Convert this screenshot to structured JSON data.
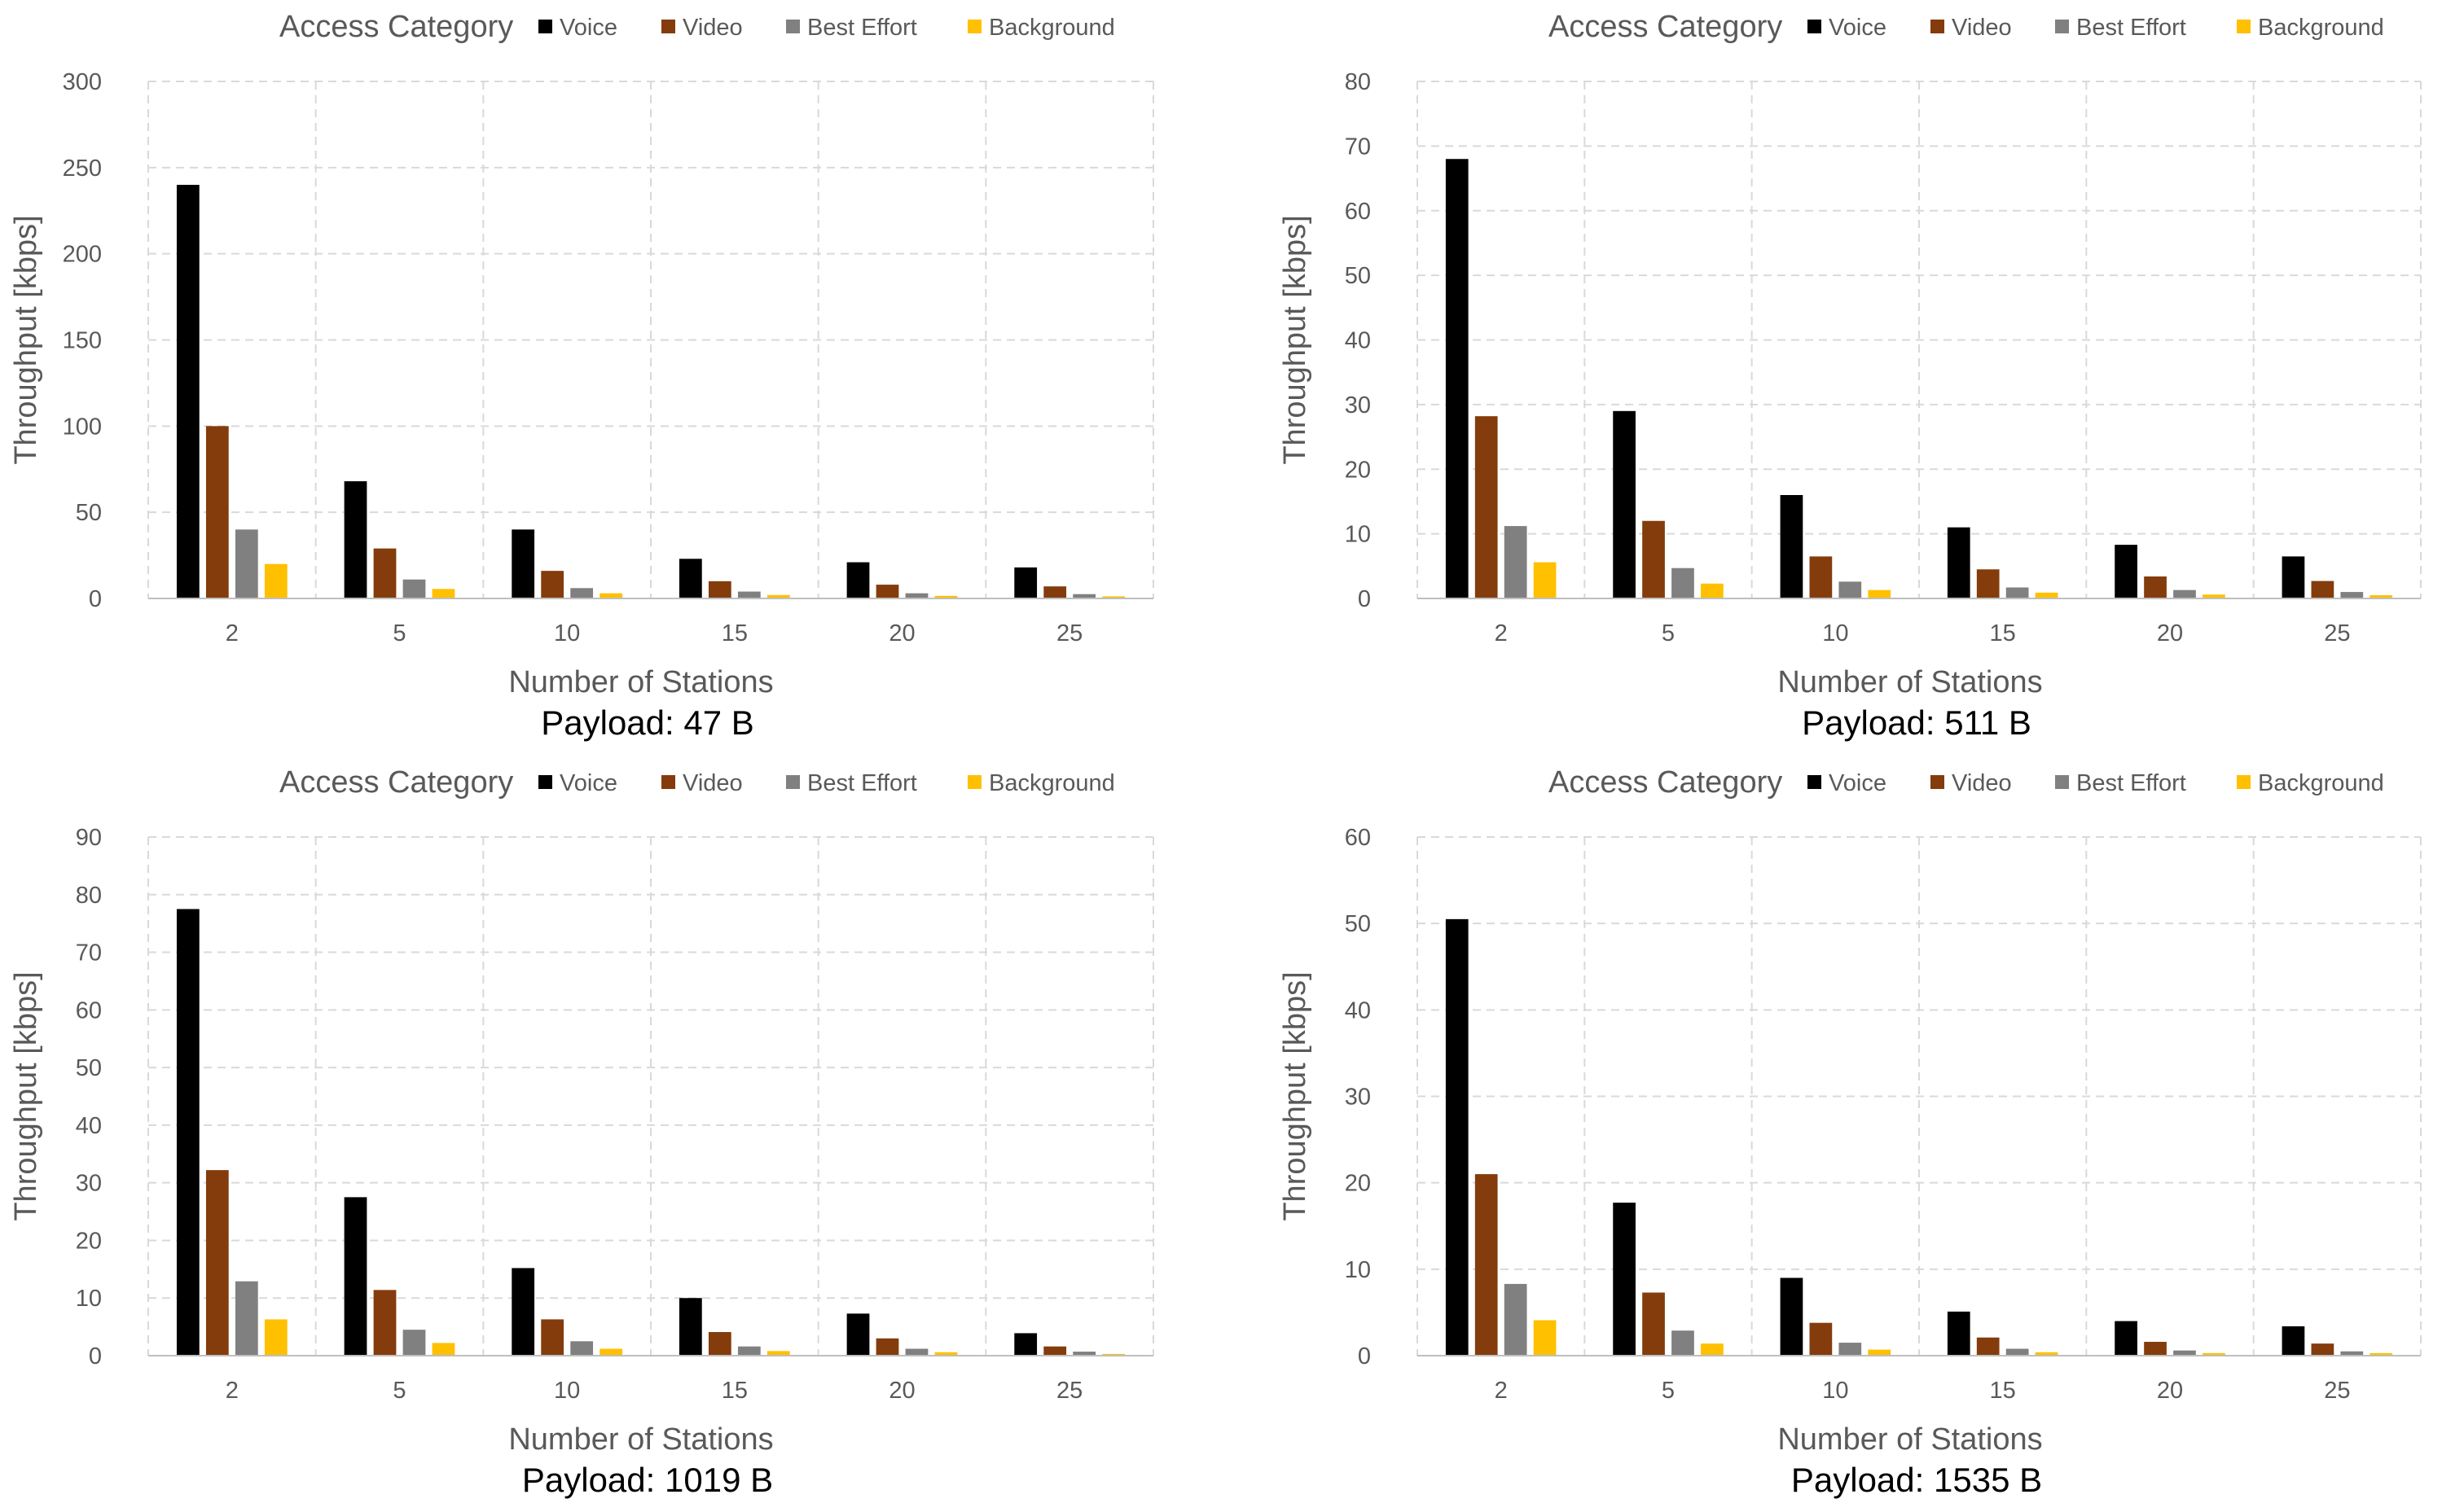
{
  "colors": {
    "voice": "#000000",
    "video": "#843C0C",
    "best_effort": "#808080",
    "background": "#FFC000",
    "grid": "#D9D9D9",
    "axis": "#BFBFBF",
    "text": "#595959",
    "caption": "#000000"
  },
  "chart_data": [
    {
      "type": "bar",
      "caption": "Payload: 47 B",
      "legend_title": "Access Category",
      "legend_position": "top",
      "xlabel": "Number of Stations",
      "ylabel": "Throughput [kbps]",
      "grid": true,
      "categories": [
        "2",
        "5",
        "10",
        "15",
        "20",
        "25"
      ],
      "ylim": [
        0,
        300
      ],
      "yticks": [
        0,
        50,
        100,
        150,
        200,
        250,
        300
      ],
      "series": [
        {
          "name": "Voice",
          "values": [
            240,
            68,
            40,
            23,
            21,
            18
          ]
        },
        {
          "name": "Video",
          "values": [
            100,
            29,
            16,
            10,
            8,
            7
          ]
        },
        {
          "name": "Best Effort",
          "values": [
            40,
            11,
            6,
            4,
            3,
            2.5
          ]
        },
        {
          "name": "Background",
          "values": [
            20,
            5.5,
            3,
            2,
            1.5,
            1.2
          ]
        }
      ]
    },
    {
      "type": "bar",
      "caption": "Payload: 511 B",
      "legend_title": "Access Category",
      "legend_position": "top",
      "xlabel": "Number of Stations",
      "ylabel": "Throughput [kbps]",
      "grid": true,
      "categories": [
        "2",
        "5",
        "10",
        "15",
        "20",
        "25"
      ],
      "ylim": [
        0,
        80
      ],
      "yticks": [
        0,
        10,
        20,
        30,
        40,
        50,
        60,
        70,
        80
      ],
      "series": [
        {
          "name": "Voice",
          "values": [
            68,
            29,
            16,
            11,
            8.3,
            6.5
          ]
        },
        {
          "name": "Video",
          "values": [
            28.2,
            12,
            6.5,
            4.5,
            3.4,
            2.7
          ]
        },
        {
          "name": "Best Effort",
          "values": [
            11.2,
            4.7,
            2.6,
            1.7,
            1.3,
            1.0
          ]
        },
        {
          "name": "Background",
          "values": [
            5.6,
            2.3,
            1.3,
            0.9,
            0.6,
            0.5
          ]
        }
      ]
    },
    {
      "type": "bar",
      "caption": "Payload: 1019 B",
      "legend_title": "Access Category",
      "legend_position": "top",
      "xlabel": "Number of Stations",
      "ylabel": "Throughput [kbps]",
      "grid": true,
      "categories": [
        "2",
        "5",
        "10",
        "15",
        "20",
        "25"
      ],
      "ylim": [
        0,
        90
      ],
      "yticks": [
        0,
        10,
        20,
        30,
        40,
        50,
        60,
        70,
        80,
        90
      ],
      "series": [
        {
          "name": "Voice",
          "values": [
            77.5,
            27.5,
            15.2,
            10,
            7.3,
            3.9
          ]
        },
        {
          "name": "Video",
          "values": [
            32.2,
            11.4,
            6.3,
            4.1,
            3.0,
            1.6
          ]
        },
        {
          "name": "Best Effort",
          "values": [
            12.9,
            4.5,
            2.5,
            1.6,
            1.2,
            0.7
          ]
        },
        {
          "name": "Background",
          "values": [
            6.3,
            2.2,
            1.2,
            0.8,
            0.6,
            0.3
          ]
        }
      ]
    },
    {
      "type": "bar",
      "caption": "Payload: 1535 B",
      "legend_title": "Access Category",
      "legend_position": "top",
      "xlabel": "Number of Stations",
      "ylabel": "Throughput [kbps]",
      "grid": true,
      "categories": [
        "2",
        "5",
        "10",
        "15",
        "20",
        "25"
      ],
      "ylim": [
        0,
        60
      ],
      "yticks": [
        0,
        10,
        20,
        30,
        40,
        50,
        60
      ],
      "series": [
        {
          "name": "Voice",
          "values": [
            50.5,
            17.7,
            9,
            5.1,
            4.0,
            3.4
          ]
        },
        {
          "name": "Video",
          "values": [
            21,
            7.3,
            3.8,
            2.1,
            1.6,
            1.4
          ]
        },
        {
          "name": "Best Effort",
          "values": [
            8.3,
            2.9,
            1.5,
            0.8,
            0.6,
            0.5
          ]
        },
        {
          "name": "Background",
          "values": [
            4.1,
            1.4,
            0.7,
            0.4,
            0.3,
            0.3
          ]
        }
      ]
    }
  ]
}
